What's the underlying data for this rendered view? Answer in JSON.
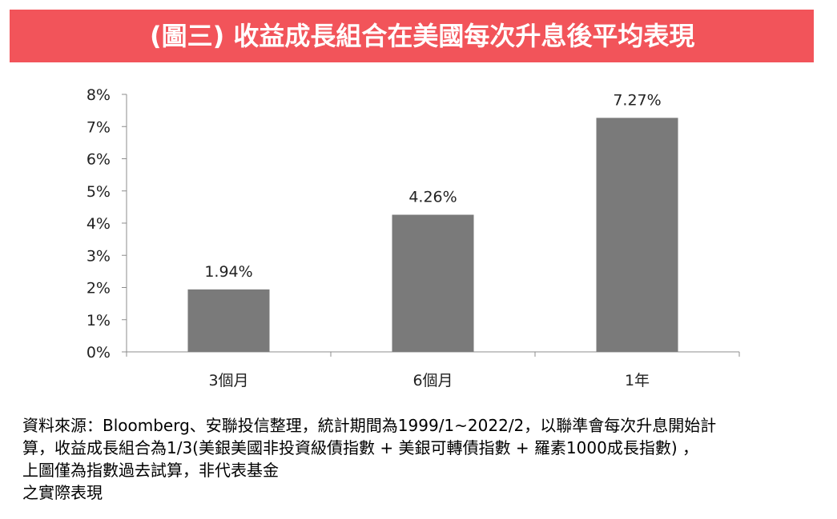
{
  "header": {
    "title": "(圖三) 收益成長組合在美國每次升息後平均表現",
    "background_color": "#f2545a"
  },
  "chart_data": {
    "type": "bar",
    "categories": [
      "3個月",
      "6個月",
      "1年"
    ],
    "values": [
      1.94,
      4.26,
      7.27
    ],
    "value_labels": [
      "1.94%",
      "4.26%",
      "7.27%"
    ],
    "ylim": [
      0,
      8
    ],
    "yticks": [
      "0%",
      "1%",
      "2%",
      "3%",
      "4%",
      "5%",
      "6%",
      "7%",
      "8%"
    ],
    "bar_color": "#7a7a7a",
    "grid": false,
    "legend": "none"
  },
  "footnote": {
    "lines": [
      "資料來源：Bloomberg、安聯投信整理，統計期間為1999/1~2022/2，以聯準會每次升息開始計",
      "算，收益成長組合為1/3(美銀美國非投資級債指數 + 美銀可轉債指數 + 羅素1000成長指數) ，",
      "上圖僅為指數過去試算，非代表基金",
      "之實際表現"
    ]
  }
}
